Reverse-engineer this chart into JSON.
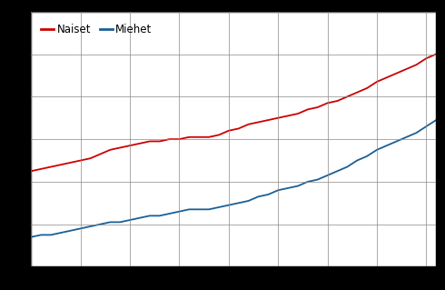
{
  "naiset_years": [
    1971,
    1972,
    1973,
    1974,
    1975,
    1976,
    1977,
    1978,
    1979,
    1980,
    1981,
    1982,
    1983,
    1984,
    1985,
    1986,
    1987,
    1988,
    1989,
    1990,
    1991,
    1992,
    1993,
    1994,
    1995,
    1996,
    1997,
    1998,
    1999,
    2000,
    2001,
    2002,
    2003,
    2004,
    2005,
    2006,
    2007,
    2008,
    2009,
    2010,
    2011,
    2012
  ],
  "naiset_values": [
    14.5,
    14.6,
    14.7,
    14.8,
    14.9,
    15.0,
    15.1,
    15.3,
    15.5,
    15.6,
    15.7,
    15.8,
    15.9,
    15.9,
    16.0,
    16.0,
    16.1,
    16.1,
    16.1,
    16.2,
    16.4,
    16.5,
    16.7,
    16.8,
    16.9,
    17.0,
    17.1,
    17.2,
    17.4,
    17.5,
    17.7,
    17.8,
    18.0,
    18.2,
    18.4,
    18.7,
    18.9,
    19.1,
    19.3,
    19.5,
    19.8,
    20.0
  ],
  "miehet_years": [
    1971,
    1972,
    1973,
    1974,
    1975,
    1976,
    1977,
    1978,
    1979,
    1980,
    1981,
    1982,
    1983,
    1984,
    1985,
    1986,
    1987,
    1988,
    1989,
    1990,
    1991,
    1992,
    1993,
    1994,
    1995,
    1996,
    1997,
    1998,
    1999,
    2000,
    2001,
    2002,
    2003,
    2004,
    2005,
    2006,
    2007,
    2008,
    2009,
    2010,
    2011,
    2012
  ],
  "miehet_values": [
    11.4,
    11.5,
    11.5,
    11.6,
    11.7,
    11.8,
    11.9,
    12.0,
    12.1,
    12.1,
    12.2,
    12.3,
    12.4,
    12.4,
    12.5,
    12.6,
    12.7,
    12.7,
    12.7,
    12.8,
    12.9,
    13.0,
    13.1,
    13.3,
    13.4,
    13.6,
    13.7,
    13.8,
    14.0,
    14.1,
    14.3,
    14.5,
    14.7,
    15.0,
    15.2,
    15.5,
    15.7,
    15.9,
    16.1,
    16.3,
    16.6,
    16.9
  ],
  "naiset_color": "#cc0000",
  "miehet_color": "#1a5f96",
  "legend_naiset": "Naiset",
  "legend_miehet": "Miehet",
  "xlim": [
    1971,
    2012
  ],
  "ylim": [
    10,
    22
  ],
  "xticks": [
    1971,
    1976,
    1981,
    1986,
    1991,
    1996,
    2001,
    2006,
    2011
  ],
  "yticks": [
    10,
    12,
    14,
    16,
    18,
    20,
    22
  ],
  "grid_color": "#888888",
  "background_color": "#ffffff",
  "border_color": "#000000",
  "line_width": 1.3,
  "legend_fontsize": 8.5
}
